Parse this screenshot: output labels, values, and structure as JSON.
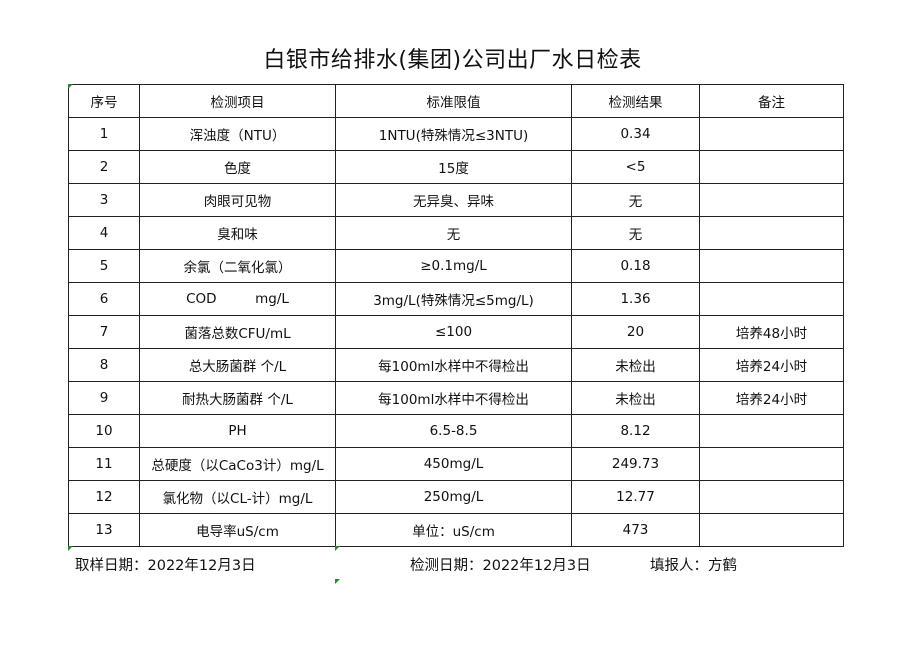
{
  "title": "白银市给排水(集团)公司出厂水日检表",
  "headers": [
    "序号",
    "检测项目",
    "标准限值",
    "检测结果",
    "备注"
  ],
  "rows": [
    [
      "1",
      "浑浊度（NTU）",
      "1NTU(特殊情况≤3NTU)",
      "0.34",
      ""
    ],
    [
      "2",
      "色度",
      "15度",
      "<5",
      ""
    ],
    [
      "3",
      "肉眼可见物",
      "无异臭、异味",
      "无",
      ""
    ],
    [
      "4",
      "臭和味",
      "无",
      "无",
      ""
    ],
    [
      "5",
      "余氯（二氧化氯）",
      "≥0.1mg/L",
      "0.18",
      ""
    ],
    [
      "6",
      "COD         mg/L",
      "3mg/L(特殊情况≤5mg/L)",
      "1.36",
      ""
    ],
    [
      "7",
      "菌落总数CFU/mL",
      "≤100",
      "20",
      "培养48小时"
    ],
    [
      "8",
      "总大肠菌群 个/L",
      "每100ml水样中不得检出",
      "未检出",
      "培养24小时"
    ],
    [
      "9",
      "耐热大肠菌群 个/L",
      "每100ml水样中不得检出",
      "未检出",
      "培养24小时"
    ],
    [
      "10",
      "PH",
      "6.5-8.5",
      "8.12",
      ""
    ],
    [
      "11",
      "总硬度（以CaCo3计）mg/L",
      "450mg/L",
      "249.73",
      ""
    ],
    [
      "12",
      "氯化物（以CL-计）mg/L",
      "250mg/L",
      "12.77",
      ""
    ],
    [
      "13",
      "电导率uS/cm",
      "单位：uS/cm",
      "473",
      ""
    ]
  ],
  "footer": {
    "sample_date": "取样日期：2022年12月3日",
    "test_date": "检测日期：2022年12月3日",
    "reporter": "填报人：方鹤"
  }
}
